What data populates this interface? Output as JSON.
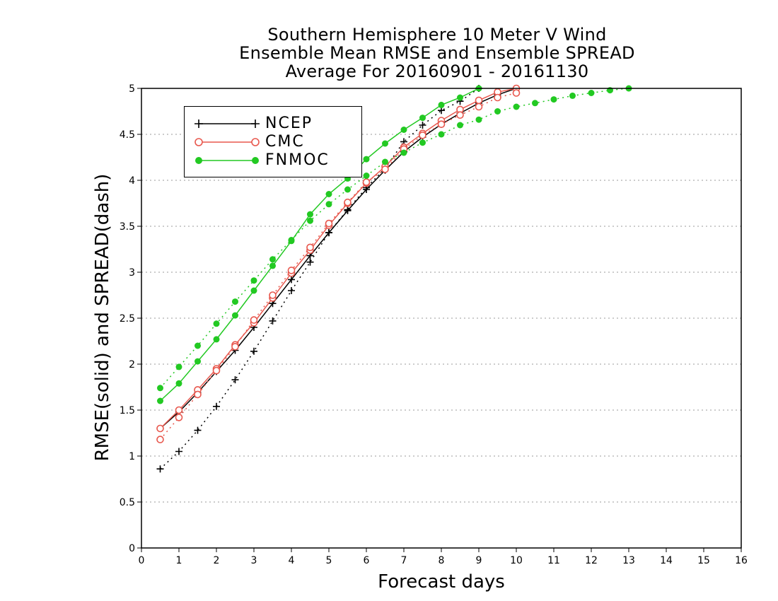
{
  "title_lines": [
    "Southern Hemisphere 10 Meter V Wind",
    "Ensemble Mean RMSE and Ensemble SPREAD",
    "Average For 20160901 - 20161130"
  ],
  "chart_data": {
    "type": "line",
    "title": "Southern Hemisphere 10 Meter V Wind / Ensemble Mean RMSE and Ensemble SPREAD / Average For 20160901 - 20161130",
    "xlabel": "Forecast days",
    "ylabel": "RMSE(solid)  and  SPREAD(dash)",
    "xlim": [
      0,
      16
    ],
    "ylim": [
      0,
      5
    ],
    "x_ticks": [
      "0",
      "1",
      "2",
      "3",
      "4",
      "5",
      "6",
      "7",
      "8",
      "9",
      "10",
      "11",
      "12",
      "13",
      "14",
      "15",
      "16"
    ],
    "y_ticks": [
      "0",
      "0.5",
      "1",
      "1.5",
      "2",
      "2.5",
      "3",
      "3.5",
      "4",
      "4.5",
      "5"
    ],
    "grid": "horizontal dotted",
    "legend_position": "top-left",
    "x": [
      0.5,
      1.0,
      1.5,
      2.0,
      2.5,
      3.0,
      3.5,
      4.0,
      4.5,
      5.0,
      5.5,
      6.0,
      6.5,
      7.0,
      7.5,
      8.0,
      8.5,
      9.0,
      9.5,
      10.0,
      10.5,
      11.0,
      11.5,
      12.0,
      12.5,
      13.0
    ],
    "series": [
      {
        "name": "NCEP",
        "style": "solid",
        "color": "#000000",
        "marker": "plus",
        "values": [
          1.3,
          1.48,
          1.69,
          1.92,
          2.15,
          2.4,
          2.66,
          2.92,
          3.18,
          3.43,
          3.67,
          3.9,
          4.11,
          4.31,
          4.47,
          4.61,
          4.73,
          4.84,
          4.93,
          5.0,
          null,
          null,
          null,
          null,
          null,
          null
        ]
      },
      {
        "name": "NCEP",
        "style": "dash",
        "color": "#000000",
        "marker": "plus",
        "values": [
          0.86,
          1.05,
          1.28,
          1.54,
          1.83,
          2.14,
          2.47,
          2.8,
          3.11,
          3.43,
          3.68,
          3.92,
          4.13,
          4.42,
          4.6,
          4.76,
          4.86,
          5.0,
          null,
          null,
          null,
          null,
          null,
          null,
          null,
          null
        ]
      },
      {
        "name": "CMC",
        "style": "solid",
        "color": "#e8584e",
        "marker": "open-circle",
        "values": [
          1.3,
          1.5,
          1.72,
          1.95,
          2.21,
          2.45,
          2.72,
          2.99,
          3.24,
          3.51,
          3.75,
          3.97,
          4.15,
          4.36,
          4.51,
          4.65,
          4.77,
          4.87,
          4.96,
          5.0,
          null,
          null,
          null,
          null,
          null,
          null
        ]
      },
      {
        "name": "CMC",
        "style": "dash",
        "color": "#e8584e",
        "marker": "open-circle",
        "values": [
          1.18,
          1.42,
          1.67,
          1.93,
          2.19,
          2.48,
          2.75,
          3.02,
          3.27,
          3.53,
          3.76,
          3.98,
          4.12,
          4.34,
          4.49,
          4.61,
          4.71,
          4.8,
          4.9,
          4.95,
          null,
          null,
          null,
          null,
          null,
          null
        ]
      },
      {
        "name": "FNMOC",
        "style": "solid",
        "color": "#22c922",
        "marker": "filled-circle",
        "values": [
          1.6,
          1.79,
          2.03,
          2.27,
          2.53,
          2.8,
          3.07,
          3.34,
          3.63,
          3.85,
          4.02,
          4.23,
          4.4,
          4.55,
          4.68,
          4.82,
          4.9,
          5.0,
          null,
          null,
          null,
          null,
          null,
          null,
          null,
          null
        ]
      },
      {
        "name": "FNMOC",
        "style": "dash",
        "color": "#22c922",
        "marker": "filled-circle",
        "values": [
          1.74,
          1.97,
          2.2,
          2.44,
          2.68,
          2.91,
          3.14,
          3.35,
          3.56,
          3.74,
          3.9,
          4.05,
          4.2,
          4.3,
          4.41,
          4.5,
          4.6,
          4.66,
          4.75,
          4.8,
          4.84,
          4.88,
          4.92,
          4.95,
          4.98,
          5.0
        ]
      }
    ]
  },
  "legend": [
    {
      "label": "NCEP",
      "color": "#000000",
      "marker": "plus"
    },
    {
      "label": "CMC",
      "color": "#e8584e",
      "marker": "open-circle"
    },
    {
      "label": "FNMOC",
      "color": "#22c922",
      "marker": "filled-circle"
    }
  ],
  "icons": [
    "plus-marker-icon",
    "open-circle-marker-icon",
    "filled-circle-marker-icon"
  ]
}
